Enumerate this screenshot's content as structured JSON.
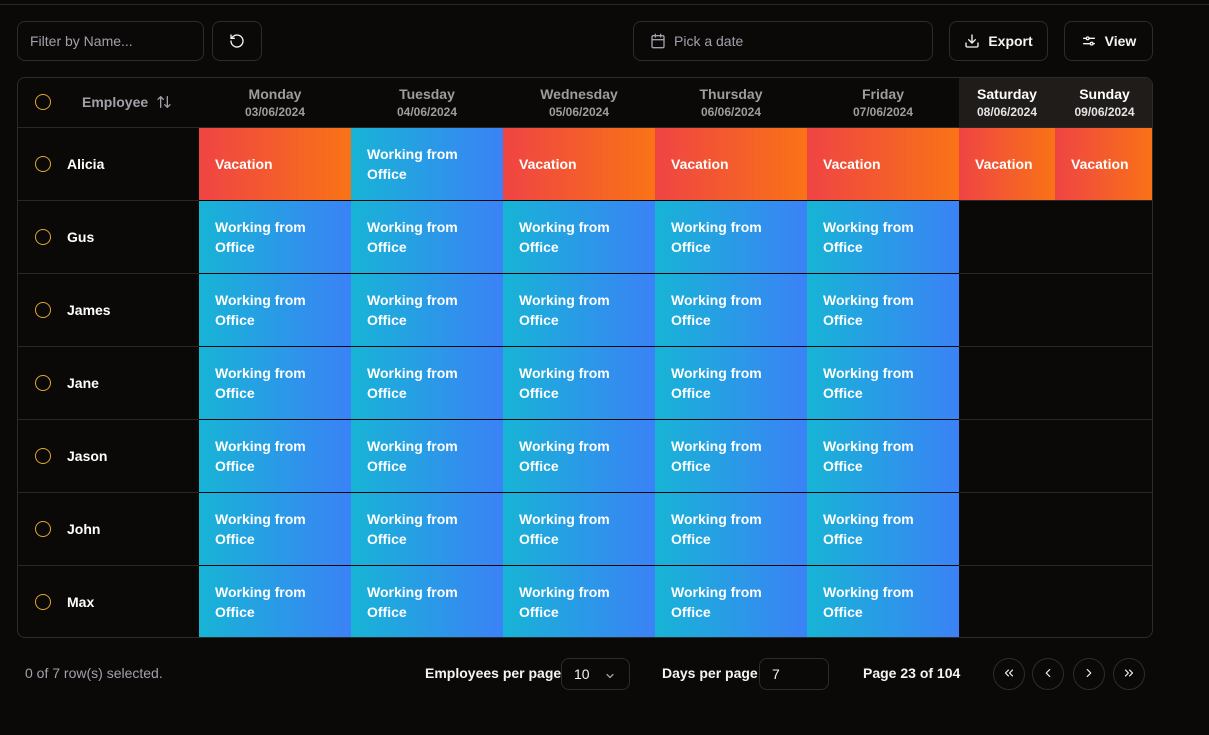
{
  "toolbar": {
    "filter_placeholder": "Filter by Name...",
    "date_placeholder": "Pick a date",
    "export_label": "Export",
    "view_label": "View",
    "reset_icon": "reset-icon",
    "calendar_icon": "calendar-icon",
    "download_icon": "download-icon",
    "view_icon": "sliders-icon"
  },
  "table": {
    "employee_header": "Employee",
    "days": [
      {
        "name": "Monday",
        "date": "03/06/2024",
        "weekend": false
      },
      {
        "name": "Tuesday",
        "date": "04/06/2024",
        "weekend": false
      },
      {
        "name": "Wednesday",
        "date": "05/06/2024",
        "weekend": false
      },
      {
        "name": "Thursday",
        "date": "06/06/2024",
        "weekend": false
      },
      {
        "name": "Friday",
        "date": "07/06/2024",
        "weekend": false
      },
      {
        "name": "Saturday",
        "date": "08/06/2024",
        "weekend": true
      },
      {
        "name": "Sunday",
        "date": "09/06/2024",
        "weekend": true
      }
    ],
    "statuses": {
      "office": "Working from Office",
      "vacation": "Vacation"
    },
    "rows": [
      {
        "name": "Alicia",
        "days": [
          "vacation",
          "office",
          "vacation",
          "vacation",
          "vacation",
          "vacation",
          "vacation"
        ]
      },
      {
        "name": "Gus",
        "days": [
          "office",
          "office",
          "office",
          "office",
          "office",
          "",
          ""
        ]
      },
      {
        "name": "James",
        "days": [
          "office",
          "office",
          "office",
          "office",
          "office",
          "",
          ""
        ]
      },
      {
        "name": "Jane",
        "days": [
          "office",
          "office",
          "office",
          "office",
          "office",
          "",
          ""
        ]
      },
      {
        "name": "Jason",
        "days": [
          "office",
          "office",
          "office",
          "office",
          "office",
          "",
          ""
        ]
      },
      {
        "name": "John",
        "days": [
          "office",
          "office",
          "office",
          "office",
          "office",
          "",
          ""
        ]
      },
      {
        "name": "Max",
        "days": [
          "office",
          "office",
          "office",
          "office",
          "office",
          "",
          ""
        ]
      }
    ]
  },
  "footer": {
    "selected_text": "0 of 7 row(s) selected.",
    "employees_per_page_label": "Employees per page",
    "employees_per_page_value": "10",
    "days_per_page_label": "Days per page",
    "days_per_page_value": "7",
    "page_info": "Page 23 of 104"
  },
  "colors": {
    "background": "#0b0908",
    "office_gradient": [
      "#17b4d6",
      "#3b82f6"
    ],
    "vacation_gradient": [
      "#ef4444",
      "#f97316"
    ],
    "checkbox": "#e0a82e"
  }
}
